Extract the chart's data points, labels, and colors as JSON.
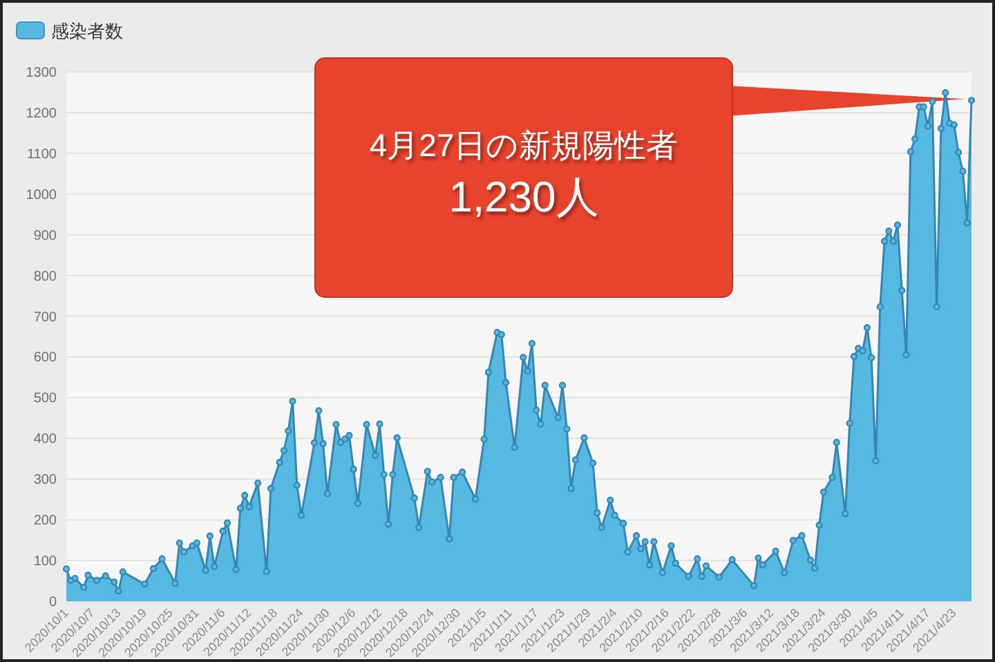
{
  "chart_data": {
    "type": "area",
    "x": [
      "2020-10-01",
      "2020-10-02",
      "2020-10-03",
      "2020-10-05",
      "2020-10-06",
      "2020-10-08",
      "2020-10-10",
      "2020-10-12",
      "2020-10-13",
      "2020-10-14",
      "2020-10-19",
      "2020-10-21",
      "2020-10-23",
      "2020-10-26",
      "2020-10-27",
      "2020-10-28",
      "2020-10-30",
      "2020-10-31",
      "2020-11-02",
      "2020-11-03",
      "2020-11-04",
      "2020-11-06",
      "2020-11-07",
      "2020-11-09",
      "2020-11-10",
      "2020-11-11",
      "2020-11-12",
      "2020-11-14",
      "2020-11-16",
      "2020-11-17",
      "2020-11-19",
      "2020-11-20",
      "2020-11-21",
      "2020-11-22",
      "2020-11-23",
      "2020-11-24",
      "2020-11-27",
      "2020-11-28",
      "2020-11-29",
      "2020-11-30",
      "2020-12-02",
      "2020-12-03",
      "2020-12-04",
      "2020-12-05",
      "2020-12-06",
      "2020-12-07",
      "2020-12-09",
      "2020-12-11",
      "2020-12-12",
      "2020-12-13",
      "2020-12-14",
      "2020-12-15",
      "2020-12-16",
      "2020-12-20",
      "2020-12-21",
      "2020-12-23",
      "2020-12-24",
      "2020-12-26",
      "2020-12-28",
      "2020-12-29",
      "2020-12-31",
      "2021-01-03",
      "2021-01-05",
      "2021-01-06",
      "2021-01-08",
      "2021-01-09",
      "2021-01-10",
      "2021-01-12",
      "2021-01-14",
      "2021-01-15",
      "2021-01-16",
      "2021-01-17",
      "2021-01-18",
      "2021-01-19",
      "2021-01-22",
      "2021-01-23",
      "2021-01-24",
      "2021-01-25",
      "2021-01-26",
      "2021-01-28",
      "2021-01-30",
      "2021-01-31",
      "2021-02-01",
      "2021-02-03",
      "2021-02-04",
      "2021-02-06",
      "2021-02-07",
      "2021-02-09",
      "2021-02-10",
      "2021-02-11",
      "2021-02-12",
      "2021-02-13",
      "2021-02-15",
      "2021-02-17",
      "2021-02-18",
      "2021-02-21",
      "2021-02-23",
      "2021-02-24",
      "2021-02-25",
      "2021-02-28",
      "2021-03-03",
      "2021-03-08",
      "2021-03-09",
      "2021-03-10",
      "2021-03-13",
      "2021-03-15",
      "2021-03-17",
      "2021-03-19",
      "2021-03-21",
      "2021-03-22",
      "2021-03-23",
      "2021-03-24",
      "2021-03-26",
      "2021-03-27",
      "2021-03-29",
      "2021-03-30",
      "2021-03-31",
      "2021-04-01",
      "2021-04-02",
      "2021-04-03",
      "2021-04-04",
      "2021-04-05",
      "2021-04-06",
      "2021-04-07",
      "2021-04-08",
      "2021-04-09",
      "2021-04-10",
      "2021-04-11",
      "2021-04-12",
      "2021-04-13",
      "2021-04-14",
      "2021-04-15",
      "2021-04-16",
      "2021-04-17",
      "2021-04-18",
      "2021-04-19",
      "2021-04-20",
      "2021-04-21",
      "2021-04-22",
      "2021-04-23",
      "2021-04-24",
      "2021-04-25",
      "2021-04-26",
      "2021-04-27"
    ],
    "series": [
      {
        "name": "感染者数",
        "color": "#55b9e2",
        "values": [
          79,
          51,
          56,
          34,
          64,
          51,
          62,
          47,
          25,
          72,
          42,
          80,
          104,
          44,
          143,
          121,
          136,
          143,
          76,
          160,
          85,
          172,
          192,
          78,
          228,
          260,
          232,
          290,
          73,
          277,
          341,
          370,
          418,
          491,
          285,
          211,
          389,
          468,
          387,
          264,
          434,
          390,
          398,
          407,
          324,
          240,
          434,
          358,
          435,
          311,
          189,
          311,
          401,
          253,
          181,
          319,
          293,
          304,
          153,
          304,
          317,
          251,
          398,
          562,
          660,
          655,
          537,
          378,
          599,
          565,
          633,
          469,
          435,
          530,
          451,
          530,
          423,
          277,
          347,
          401,
          339,
          217,
          181,
          248,
          211,
          191,
          121,
          161,
          129,
          146,
          89,
          146,
          70,
          136,
          93,
          61,
          104,
          61,
          87,
          59,
          102,
          38,
          106,
          89,
          123,
          70,
          149,
          161,
          101,
          81,
          187,
          268,
          304,
          390,
          215,
          437,
          601,
          621,
          615,
          672,
          598,
          345,
          723,
          884,
          909,
          884,
          924,
          763,
          605,
          1104,
          1135,
          1214,
          1214,
          1167,
          1227,
          723,
          1161,
          1249,
          1174,
          1170,
          1102,
          1056,
          929,
          1230
        ]
      }
    ],
    "xlim": [
      "2020-10-01",
      "2021-04-27"
    ],
    "xticks": [
      {
        "value": "2020-10-01",
        "label": "2020/10/1"
      },
      {
        "value": "2020-10-07",
        "label": "2020/10/7"
      },
      {
        "value": "2020-10-13",
        "label": "2020/10/13"
      },
      {
        "value": "2020-10-19",
        "label": "2020/10/19"
      },
      {
        "value": "2020-10-25",
        "label": "2020/10/25"
      },
      {
        "value": "2020-10-31",
        "label": "2020/10/31"
      },
      {
        "value": "2020-11-06",
        "label": "2020/11/6"
      },
      {
        "value": "2020-11-12",
        "label": "2020/11/12"
      },
      {
        "value": "2020-11-18",
        "label": "2020/11/18"
      },
      {
        "value": "2020-11-24",
        "label": "2020/11/24"
      },
      {
        "value": "2020-11-30",
        "label": "2020/11/30"
      },
      {
        "value": "2020-12-06",
        "label": "2020/12/6"
      },
      {
        "value": "2020-12-12",
        "label": "2020/12/12"
      },
      {
        "value": "2020-12-18",
        "label": "2020/12/18"
      },
      {
        "value": "2020-12-24",
        "label": "2020/12/24"
      },
      {
        "value": "2020-12-30",
        "label": "2020/12/30"
      },
      {
        "value": "2021-01-05",
        "label": "2021/1/5"
      },
      {
        "value": "2021-01-11",
        "label": "2021/1/11"
      },
      {
        "value": "2021-01-17",
        "label": "2021/1/17"
      },
      {
        "value": "2021-01-23",
        "label": "2021/1/23"
      },
      {
        "value": "2021-01-29",
        "label": "2021/1/29"
      },
      {
        "value": "2021-02-04",
        "label": "2021/2/4"
      },
      {
        "value": "2021-02-10",
        "label": "2021/2/10"
      },
      {
        "value": "2021-02-16",
        "label": "2021/2/16"
      },
      {
        "value": "2021-02-22",
        "label": "2021/2/22"
      },
      {
        "value": "2021-02-28",
        "label": "2021/2/28"
      },
      {
        "value": "2021-03-06",
        "label": "2021/3/6"
      },
      {
        "value": "2021-03-12",
        "label": "2021/3/12"
      },
      {
        "value": "2021-03-18",
        "label": "2021/3/18"
      },
      {
        "value": "2021-03-24",
        "label": "2021/3/24"
      },
      {
        "value": "2021-03-30",
        "label": "2021/3/30"
      },
      {
        "value": "2021-04-05",
        "label": "2021/4/5"
      },
      {
        "value": "2021-04-11",
        "label": "2021/4/11"
      },
      {
        "value": "2021-04-17",
        "label": "2021/4/17"
      },
      {
        "value": "2021-04-23",
        "label": "2021/4/23"
      }
    ],
    "ylim": [
      0,
      1300
    ],
    "yticks": [
      0,
      100,
      200,
      300,
      400,
      500,
      600,
      700,
      800,
      900,
      1000,
      1100,
      1200,
      1300
    ],
    "grid": "y",
    "legend": "top left",
    "marker": "circle",
    "line_style": "solid",
    "annotations": [
      {
        "text": "4月27日の新規陽性者\n1,230人",
        "x": "2021-04-27",
        "y": 1230
      }
    ]
  }
}
